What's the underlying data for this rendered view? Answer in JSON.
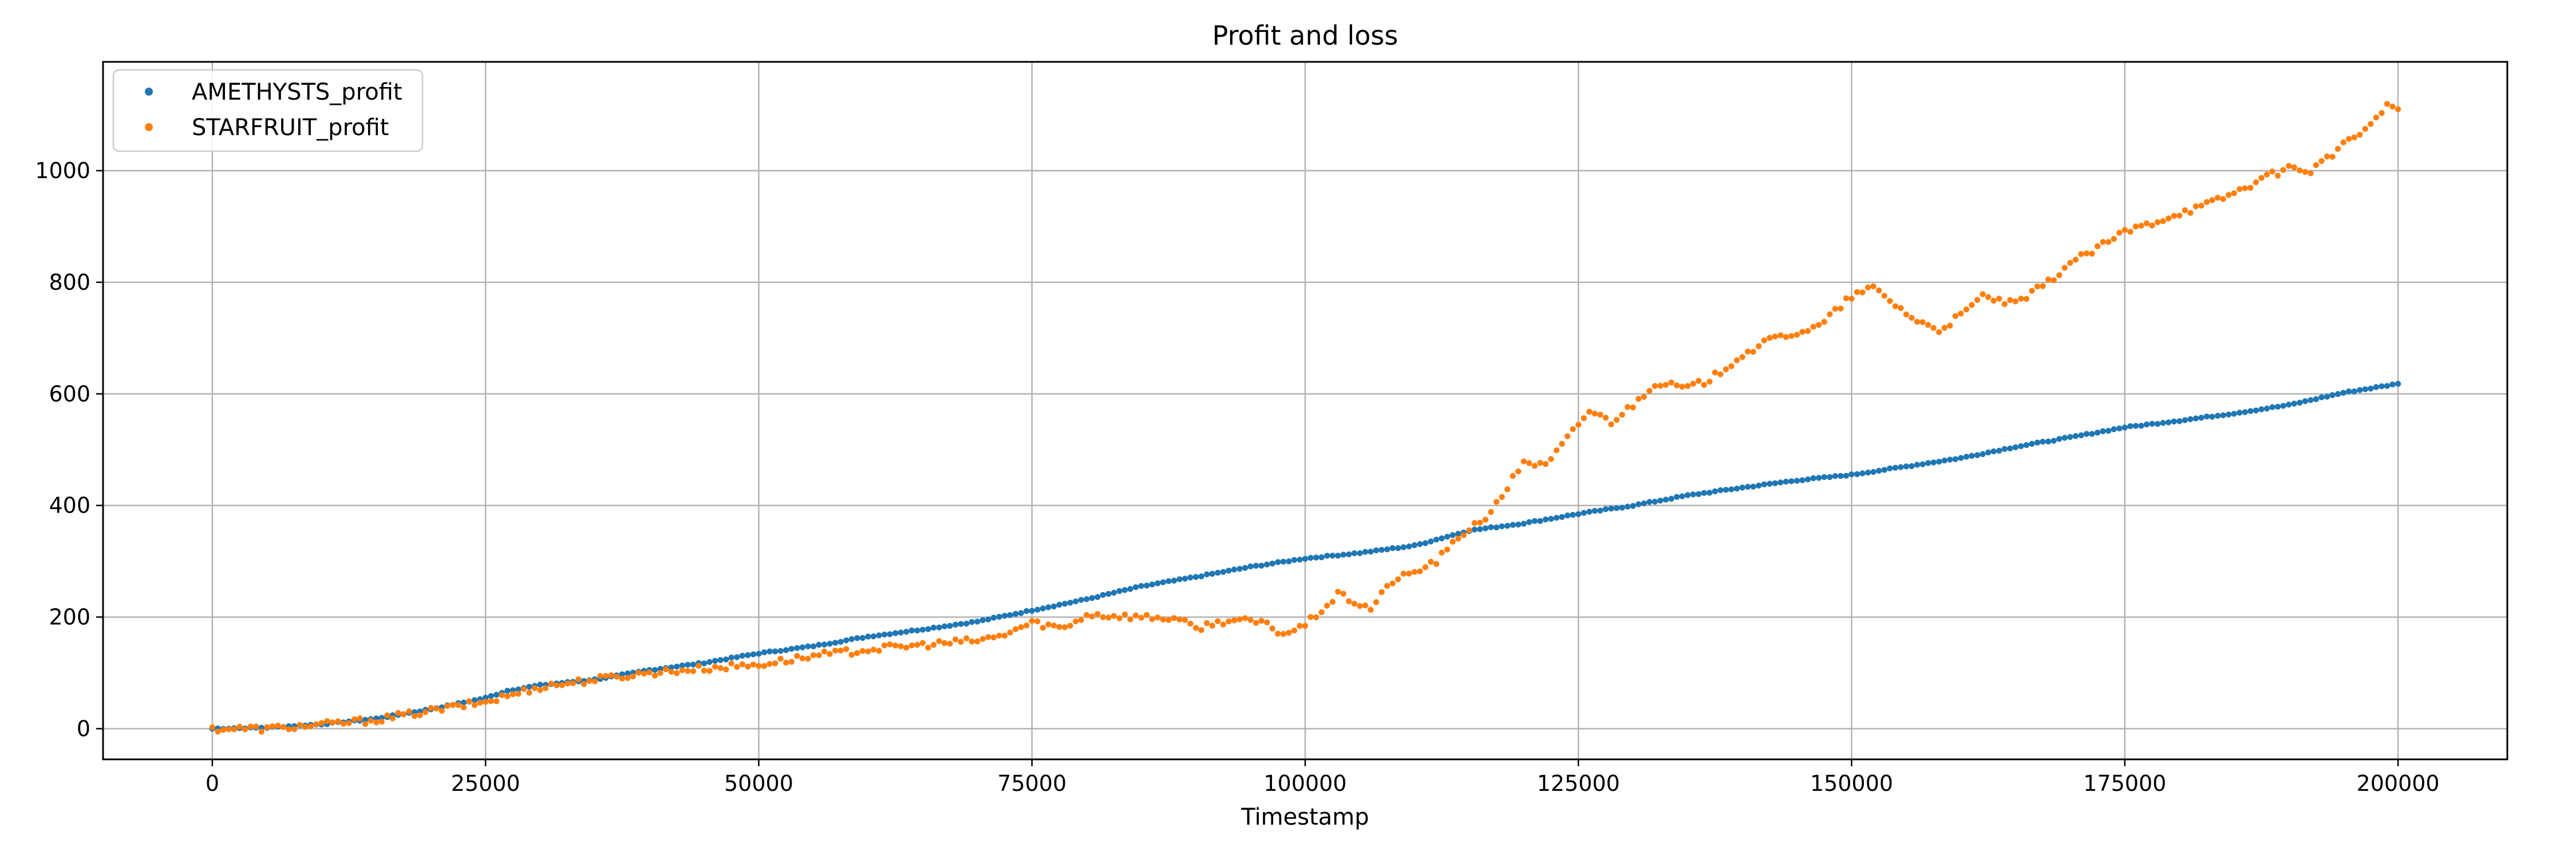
{
  "chart_data": {
    "type": "scatter",
    "title": "Profit and loss",
    "xlabel": "Timestamp",
    "ylabel": "",
    "xlim": [
      -10000,
      210000
    ],
    "ylim": [
      -55,
      1195
    ],
    "xticks": [
      0,
      25000,
      50000,
      75000,
      100000,
      125000,
      150000,
      175000,
      200000
    ],
    "yticks": [
      0,
      200,
      400,
      600,
      800,
      1000
    ],
    "grid": true,
    "legend": "top-left",
    "series": [
      {
        "name": "AMETHYSTS_profit",
        "color": "#1f77b4",
        "points": [
          [
            0,
            0
          ],
          [
            5000,
            2
          ],
          [
            10000,
            8
          ],
          [
            15000,
            18
          ],
          [
            20000,
            35
          ],
          [
            25000,
            55
          ],
          [
            27000,
            68
          ],
          [
            30000,
            78
          ],
          [
            35000,
            88
          ],
          [
            40000,
            105
          ],
          [
            45000,
            118
          ],
          [
            50000,
            135
          ],
          [
            55000,
            148
          ],
          [
            60000,
            165
          ],
          [
            65000,
            178
          ],
          [
            70000,
            192
          ],
          [
            75000,
            212
          ],
          [
            80000,
            232
          ],
          [
            85000,
            255
          ],
          [
            90000,
            272
          ],
          [
            95000,
            290
          ],
          [
            100000,
            305
          ],
          [
            105000,
            315
          ],
          [
            110000,
            328
          ],
          [
            115000,
            355
          ],
          [
            120000,
            368
          ],
          [
            125000,
            385
          ],
          [
            130000,
            400
          ],
          [
            135000,
            418
          ],
          [
            140000,
            432
          ],
          [
            145000,
            445
          ],
          [
            150000,
            455
          ],
          [
            155000,
            470
          ],
          [
            160000,
            485
          ],
          [
            165000,
            505
          ],
          [
            170000,
            522
          ],
          [
            175000,
            540
          ],
          [
            180000,
            552
          ],
          [
            185000,
            565
          ],
          [
            190000,
            580
          ],
          [
            195000,
            602
          ],
          [
            200000,
            618
          ]
        ]
      },
      {
        "name": "STARFRUIT_profit",
        "color": "#ff7f0e",
        "points": [
          [
            0,
            0
          ],
          [
            5000,
            0
          ],
          [
            10000,
            7
          ],
          [
            15000,
            16
          ],
          [
            20000,
            32
          ],
          [
            25000,
            48
          ],
          [
            30000,
            75
          ],
          [
            35000,
            88
          ],
          [
            40000,
            100
          ],
          [
            45000,
            108
          ],
          [
            50000,
            115
          ],
          [
            55000,
            130
          ],
          [
            60000,
            142
          ],
          [
            65000,
            150
          ],
          [
            70000,
            158
          ],
          [
            72000,
            165
          ],
          [
            75000,
            190
          ],
          [
            78000,
            180
          ],
          [
            80000,
            205
          ],
          [
            85000,
            200
          ],
          [
            88000,
            198
          ],
          [
            90000,
            180
          ],
          [
            93000,
            195
          ],
          [
            96000,
            190
          ],
          [
            98000,
            170
          ],
          [
            100000,
            185
          ],
          [
            103000,
            240
          ],
          [
            106000,
            215
          ],
          [
            108000,
            265
          ],
          [
            110000,
            280
          ],
          [
            112000,
            300
          ],
          [
            115000,
            360
          ],
          [
            117000,
            385
          ],
          [
            120000,
            480
          ],
          [
            122000,
            470
          ],
          [
            124000,
            520
          ],
          [
            126000,
            570
          ],
          [
            128000,
            550
          ],
          [
            130000,
            580
          ],
          [
            132000,
            620
          ],
          [
            135000,
            610
          ],
          [
            137000,
            625
          ],
          [
            140000,
            670
          ],
          [
            143000,
            700
          ],
          [
            147000,
            720
          ],
          [
            150000,
            775
          ],
          [
            152000,
            790
          ],
          [
            154000,
            760
          ],
          [
            156000,
            730
          ],
          [
            158000,
            715
          ],
          [
            160000,
            740
          ],
          [
            162000,
            775
          ],
          [
            165000,
            760
          ],
          [
            168000,
            800
          ],
          [
            170000,
            835
          ],
          [
            172000,
            855
          ],
          [
            175000,
            890
          ],
          [
            178000,
            910
          ],
          [
            180000,
            925
          ],
          [
            182000,
            935
          ],
          [
            185000,
            960
          ],
          [
            187000,
            980
          ],
          [
            190000,
            1005
          ],
          [
            192000,
            1000
          ],
          [
            194000,
            1030
          ],
          [
            196000,
            1060
          ],
          [
            198000,
            1090
          ],
          [
            199000,
            1120
          ],
          [
            200000,
            1110
          ]
        ]
      }
    ]
  }
}
